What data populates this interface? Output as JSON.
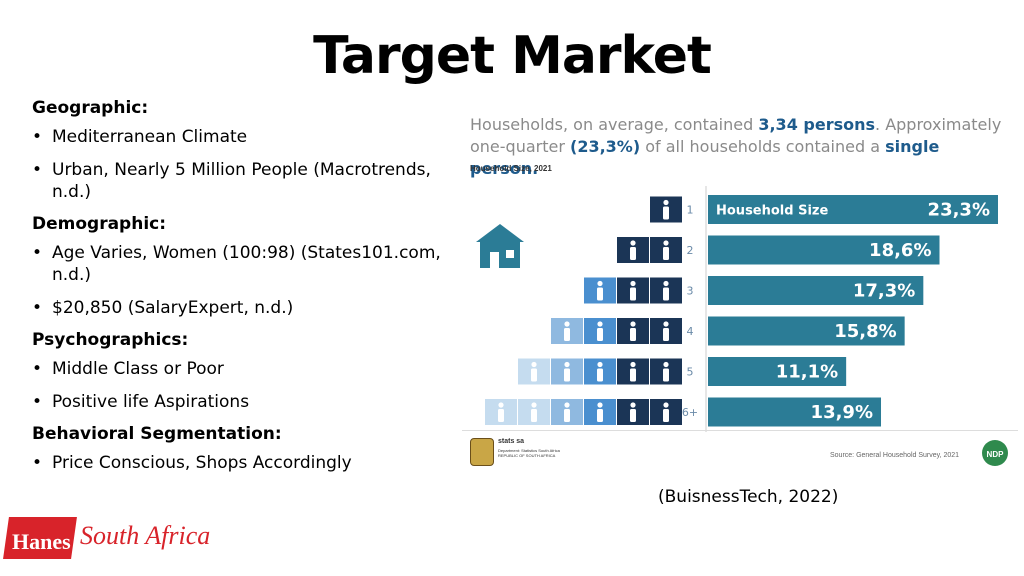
{
  "title": "Target Market",
  "sections": [
    {
      "heading": "Geographic:",
      "items": [
        "Mediterranean Climate",
        "Urban, Nearly 5 Million People (Macrotrends, n.d.)"
      ]
    },
    {
      "heading": "Demographic:",
      "items": [
        "Age Varies, Women (100:98) (States101.com, n.d.)",
        "$20,850 (SalaryExpert, n.d.)"
      ]
    },
    {
      "heading": "Psychographics:",
      "items": [
        "Middle Class or Poor",
        "Positive life Aspirations"
      ]
    },
    {
      "heading": "Behavioral Segmentation:",
      "items": [
        "Price Conscious, Shops Accordingly"
      ]
    }
  ],
  "infographic": {
    "text_prefix": "Households, on average, contained ",
    "text_hl1": "3,34 persons",
    "text_mid": ". Approximately one-quarter ",
    "text_hl2": "(23,3%)",
    "text_mid2": " of all households contained a ",
    "text_hl3": "single person.",
    "subtitle": "Household Size, 2021",
    "source": "Source: General Household Survey, 2021",
    "statssa_name": "stats sa",
    "statssa_sub": "Department: Statistics South Africa REPUBLIC OF SOUTH AFRICA",
    "ndp_label": "NDP"
  },
  "chart_data": {
    "type": "bar",
    "orientation": "horizontal",
    "title": "Household Size, 2021",
    "series_label": "Household Size",
    "categories": [
      "1",
      "2",
      "3",
      "4",
      "5",
      "6+"
    ],
    "values": [
      23.3,
      18.6,
      17.3,
      15.8,
      11.1,
      13.9
    ],
    "value_labels": [
      "23,3%",
      "18,6%",
      "17,3%",
      "15,8%",
      "11,1%",
      "13,9%"
    ],
    "xlim": [
      0,
      23.3
    ],
    "colors": {
      "bar": "#2b7c96",
      "icon_dark": "#1b3556",
      "icon_mid": "#4a8fcf",
      "icon_light": "#8fb9e0",
      "icon_pale": "#c5dcef",
      "house": "#2b7c96"
    }
  },
  "caption": "(BuisnessTech, 2022)",
  "logo": {
    "brand": "Hanes",
    "region": "South Africa"
  }
}
